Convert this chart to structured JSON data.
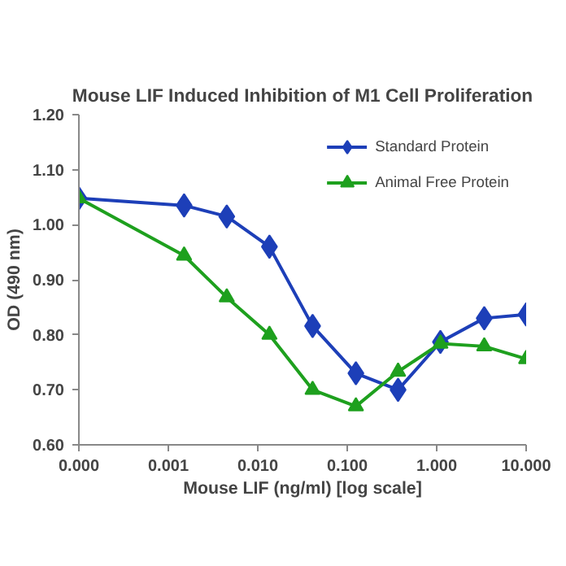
{
  "chart_data": {
    "type": "line",
    "title": "Mouse LIF Induced Inhibition of M1 Cell Proliferation",
    "xlabel": "Mouse LIF (ng/ml) [log scale]",
    "ylabel": "OD (490 nm)",
    "log": "x",
    "xlim": [
      0.0001,
      10
    ],
    "xticks": [
      {
        "value": 0.0001,
        "label": "0.000"
      },
      {
        "value": 0.001,
        "label": "0.001"
      },
      {
        "value": 0.01,
        "label": "0.010"
      },
      {
        "value": 0.1,
        "label": "0.100"
      },
      {
        "value": 1,
        "label": "1.000"
      },
      {
        "value": 10,
        "label": "10.000"
      }
    ],
    "ylim": [
      0.6,
      1.2
    ],
    "yticks": [
      {
        "value": 0.6,
        "label": "0.60"
      },
      {
        "value": 0.7,
        "label": "0.70"
      },
      {
        "value": 0.8,
        "label": "0.80"
      },
      {
        "value": 0.9,
        "label": "0.90"
      },
      {
        "value": 1.0,
        "label": "1.00"
      },
      {
        "value": 1.1,
        "label": "1.10"
      },
      {
        "value": 1.2,
        "label": "1.20"
      }
    ],
    "x": [
      0.0001,
      0.0015,
      0.0045,
      0.0135,
      0.041,
      0.125,
      0.37,
      1.1,
      3.4,
      10
    ],
    "series": [
      {
        "name": "Standard Protein",
        "color": "#1d3fb8",
        "marker": "diamond",
        "values": [
          1.048,
          1.035,
          1.015,
          0.96,
          0.816,
          0.73,
          0.7,
          0.787,
          0.83,
          0.837
        ]
      },
      {
        "name": "Animal Free Protein",
        "color": "#1ea01e",
        "marker": "triangle",
        "values": [
          1.048,
          0.944,
          0.868,
          0.8,
          0.7,
          0.67,
          0.733,
          0.784,
          0.779,
          0.756
        ]
      }
    ],
    "legend": "top right",
    "grid": false,
    "line_style": "solid"
  }
}
